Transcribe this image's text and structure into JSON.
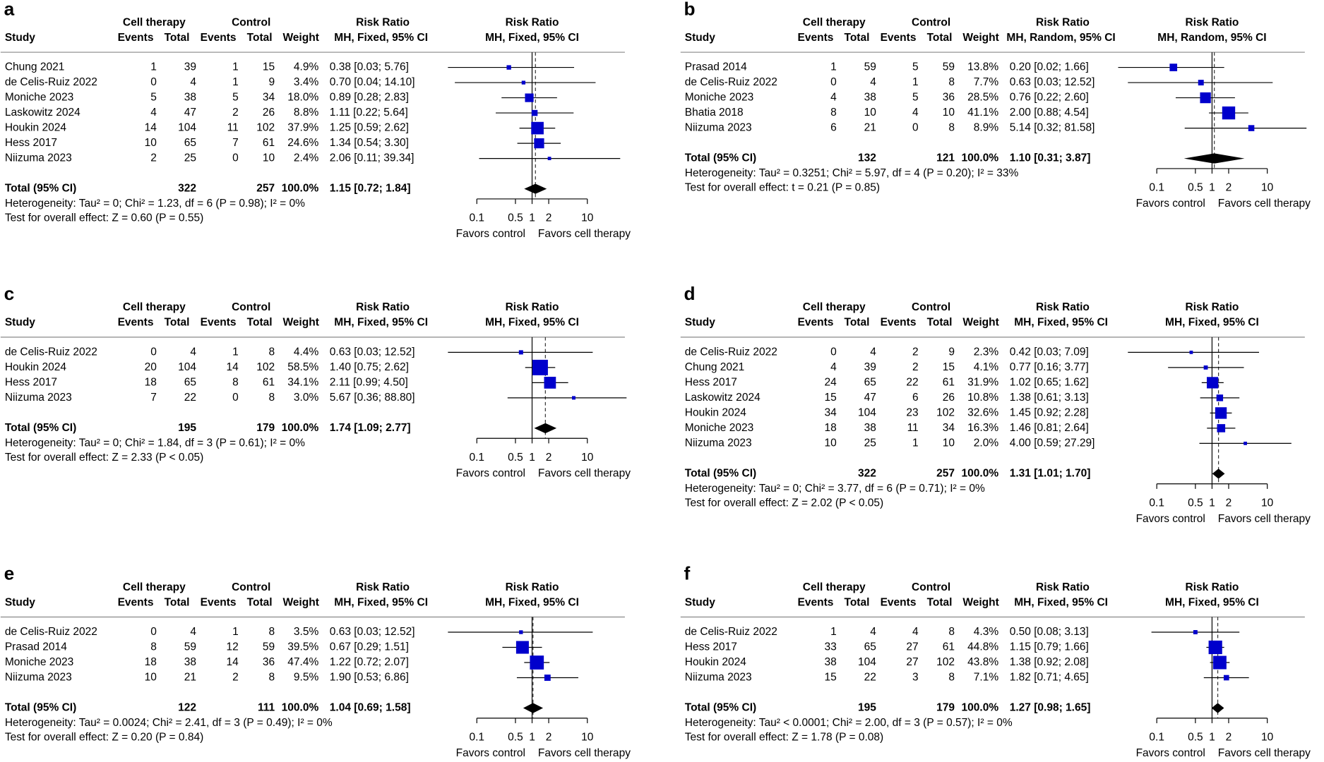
{
  "chart_data": [
    {
      "type": "forest",
      "label": "a",
      "color": "#0000cc",
      "log": true,
      "xlim": [
        0.1,
        10
      ],
      "xticks": [
        0.1,
        0.5,
        1,
        2,
        10
      ],
      "headers": {
        "exp_group": "Cell therapy",
        "ctrl_group": "Control",
        "study": "Study",
        "events": "Events",
        "total": "Total",
        "weight": "Weight",
        "ci_title": "Risk Ratio",
        "ci_method": "MH, Fixed, 95% CI",
        "plot_title": "Risk Ratio",
        "plot_method": "MH, Fixed, 95% CI"
      },
      "studies": [
        "Chung 2021",
        "de Celis-Ruiz 2022",
        "Moniche 2023",
        "Laskowitz 2024",
        "Houkin 2024",
        "Hess 2017",
        "Niizuma 2023"
      ],
      "exp_events": [
        1,
        0,
        5,
        4,
        14,
        10,
        2
      ],
      "exp_total": [
        39,
        4,
        38,
        47,
        104,
        65,
        25
      ],
      "ctrl_events": [
        1,
        1,
        5,
        2,
        11,
        7,
        0
      ],
      "ctrl_total": [
        15,
        9,
        34,
        26,
        102,
        61,
        10
      ],
      "weights": [
        4.9,
        3.4,
        18.0,
        8.8,
        37.9,
        24.6,
        2.4
      ],
      "weight_labels": [
        "4.9%",
        "3.4%",
        "18.0%",
        "8.8%",
        "37.9%",
        "24.6%",
        "2.4%"
      ],
      "values": [
        0.38,
        0.7,
        0.89,
        1.11,
        1.25,
        1.34,
        2.06
      ],
      "lower": [
        0.03,
        0.04,
        0.28,
        0.22,
        0.59,
        0.54,
        0.11
      ],
      "upper": [
        5.76,
        14.1,
        2.83,
        5.64,
        2.62,
        3.3,
        39.34
      ],
      "value_labels": [
        "0.38 [0.03; 5.76]",
        "0.70 [0.04; 14.10]",
        "0.89 [0.28; 2.83]",
        "1.11 [0.22; 5.64]",
        "1.25 [0.59; 2.62]",
        "1.34 [0.54; 3.30]",
        "2.06 [0.11; 39.34]"
      ],
      "total": {
        "label": "Total (95% CI)",
        "exp_total": 322,
        "ctrl_total": 257,
        "weight": 100,
        "weight_label": "100.0%",
        "value": 1.15,
        "lower": 0.72,
        "upper": 1.84,
        "value_label": "1.15 [0.72; 1.84]"
      },
      "heterogeneity": "Heterogeneity: Tau² = 0; Chi² = 1.23, df = 6 (P = 0.98); I² = 0%",
      "overall_effect": "Test for overall effect: Z = 0.60 (P = 0.55)",
      "favors_left": "Favors control",
      "favors_right": "Favors cell therapy"
    },
    {
      "type": "forest",
      "label": "b",
      "color": "#0000cc",
      "log": true,
      "xlim": [
        0.1,
        10
      ],
      "xticks": [
        0.1,
        0.5,
        1,
        2,
        10
      ],
      "headers": {
        "exp_group": "Cell therapy",
        "ctrl_group": "Control",
        "study": "Study",
        "events": "Events",
        "total": "Total",
        "weight": "Weight",
        "ci_title": "Risk Ratio",
        "ci_method": "MH, Random, 95% CI",
        "plot_title": "Risk Ratio",
        "plot_method": "MH, Random, 95% CI"
      },
      "studies": [
        "Prasad 2014",
        "de Celis-Ruiz 2022",
        "Moniche 2023",
        "Bhatia 2018",
        "Niizuma 2023"
      ],
      "exp_events": [
        1,
        0,
        4,
        8,
        6
      ],
      "exp_total": [
        59,
        4,
        38,
        10,
        21
      ],
      "ctrl_events": [
        5,
        1,
        5,
        4,
        0
      ],
      "ctrl_total": [
        59,
        8,
        36,
        10,
        8
      ],
      "weights": [
        13.8,
        7.7,
        28.5,
        41.1,
        8.9
      ],
      "weight_labels": [
        "13.8%",
        "7.7%",
        "28.5%",
        "41.1%",
        "8.9%"
      ],
      "values": [
        0.2,
        0.63,
        0.76,
        2.0,
        5.14
      ],
      "lower": [
        0.02,
        0.03,
        0.22,
        0.88,
        0.32
      ],
      "upper": [
        1.66,
        12.52,
        2.6,
        4.54,
        81.58
      ],
      "value_labels": [
        "0.20 [0.02; 1.66]",
        "0.63 [0.03; 12.52]",
        "0.76 [0.22; 2.60]",
        "2.00 [0.88; 4.54]",
        "5.14 [0.32; 81.58]"
      ],
      "total": {
        "label": "Total (95% CI)",
        "exp_total": 132,
        "ctrl_total": 121,
        "weight": 100,
        "weight_label": "100.0%",
        "value": 1.1,
        "lower": 0.31,
        "upper": 3.87,
        "value_label": "1.10 [0.31; 3.87]"
      },
      "heterogeneity": "Heterogeneity: Tau² = 0.3251; Chi² = 5.97, df = 4 (P = 0.20); I² = 33%",
      "overall_effect": "Test for overall effect: t = 0.21 (P = 0.85)",
      "favors_left": "Favors control",
      "favors_right": "Favors cell therapy"
    },
    {
      "type": "forest",
      "label": "c",
      "color": "#0000cc",
      "log": true,
      "xlim": [
        0.1,
        10
      ],
      "xticks": [
        0.1,
        0.5,
        1,
        2,
        10
      ],
      "headers": {
        "exp_group": "Cell therapy",
        "ctrl_group": "Control",
        "study": "Study",
        "events": "Events",
        "total": "Total",
        "weight": "Weight",
        "ci_title": "Risk Ratio",
        "ci_method": "MH, Fixed, 95% CI",
        "plot_title": "Risk Ratio",
        "plot_method": "MH, Fixed, 95% CI"
      },
      "studies": [
        "de Celis-Ruiz 2022",
        "Houkin 2024",
        "Hess 2017",
        "Niizuma 2023"
      ],
      "exp_events": [
        0,
        20,
        18,
        7
      ],
      "exp_total": [
        4,
        104,
        65,
        22
      ],
      "ctrl_events": [
        1,
        14,
        8,
        0
      ],
      "ctrl_total": [
        8,
        102,
        61,
        8
      ],
      "weights": [
        4.4,
        58.5,
        34.1,
        3.0
      ],
      "weight_labels": [
        "4.4%",
        "58.5%",
        "34.1%",
        "3.0%"
      ],
      "values": [
        0.63,
        1.4,
        2.11,
        5.67
      ],
      "lower": [
        0.03,
        0.75,
        0.99,
        0.36
      ],
      "upper": [
        12.52,
        2.62,
        4.5,
        88.8
      ],
      "value_labels": [
        "0.63 [0.03; 12.52]",
        "1.40 [0.75; 2.62]",
        "2.11 [0.99; 4.50]",
        "5.67 [0.36; 88.80]"
      ],
      "total": {
        "label": "Total (95% CI)",
        "exp_total": 195,
        "ctrl_total": 179,
        "weight": 100,
        "weight_label": "100.0%",
        "value": 1.74,
        "lower": 1.09,
        "upper": 2.77,
        "value_label": "1.74 [1.09; 2.77]"
      },
      "heterogeneity": "Heterogeneity: Tau² = 0; Chi² = 1.84, df = 3 (P = 0.61); I² = 0%",
      "overall_effect": "Test for overall effect: Z = 2.33 (P < 0.05)",
      "favors_left": "Favors control",
      "favors_right": "Favors cell therapy"
    },
    {
      "type": "forest",
      "label": "d",
      "color": "#0000cc",
      "log": true,
      "xlim": [
        0.1,
        10
      ],
      "xticks": [
        0.1,
        0.5,
        1,
        2,
        10
      ],
      "headers": {
        "exp_group": "Cell therapy",
        "ctrl_group": "Control",
        "study": "Study",
        "events": "Events",
        "total": "Total",
        "weight": "Weight",
        "ci_title": "Risk Ratio",
        "ci_method": "MH, Fixed, 95% CI",
        "plot_title": "Risk Ratio",
        "plot_method": "MH, Fixed, 95% CI"
      },
      "studies": [
        "de Celis-Ruiz 2022",
        "Chung 2021",
        "Hess 2017",
        "Laskowitz 2024",
        "Houkin 2024",
        "Moniche 2023",
        "Niizuma 2023"
      ],
      "exp_events": [
        0,
        4,
        24,
        15,
        34,
        18,
        10
      ],
      "exp_total": [
        4,
        39,
        65,
        47,
        104,
        38,
        25
      ],
      "ctrl_events": [
        2,
        2,
        22,
        6,
        23,
        11,
        1
      ],
      "ctrl_total": [
        9,
        15,
        61,
        26,
        102,
        34,
        10
      ],
      "weights": [
        2.3,
        4.1,
        31.9,
        10.8,
        32.6,
        16.3,
        2.0
      ],
      "weight_labels": [
        "2.3%",
        "4.1%",
        "31.9%",
        "10.8%",
        "32.6%",
        "16.3%",
        "2.0%"
      ],
      "values": [
        0.42,
        0.77,
        1.02,
        1.38,
        1.45,
        1.46,
        4.0
      ],
      "lower": [
        0.03,
        0.16,
        0.65,
        0.61,
        0.92,
        0.81,
        0.59
      ],
      "upper": [
        7.09,
        3.77,
        1.62,
        3.13,
        2.28,
        2.64,
        27.29
      ],
      "value_labels": [
        "0.42 [0.03; 7.09]",
        "0.77 [0.16; 3.77]",
        "1.02 [0.65; 1.62]",
        "1.38 [0.61; 3.13]",
        "1.45 [0.92; 2.28]",
        "1.46 [0.81; 2.64]",
        "4.00 [0.59; 27.29]"
      ],
      "total": {
        "label": "Total (95% CI)",
        "exp_total": 322,
        "ctrl_total": 257,
        "weight": 100,
        "weight_label": "100.0%",
        "value": 1.31,
        "lower": 1.01,
        "upper": 1.7,
        "value_label": "1.31 [1.01; 1.70]"
      },
      "heterogeneity": "Heterogeneity: Tau² = 0; Chi² = 3.77, df = 6 (P = 0.71); I² = 0%",
      "overall_effect": "Test for overall effect: Z = 2.02 (P < 0.05)",
      "favors_left": "Favors control",
      "favors_right": "Favors cell therapy"
    },
    {
      "type": "forest",
      "label": "e",
      "color": "#0000cc",
      "log": true,
      "xlim": [
        0.1,
        10
      ],
      "xticks": [
        0.1,
        0.5,
        1,
        2,
        10
      ],
      "headers": {
        "exp_group": "Cell therapy",
        "ctrl_group": "Control",
        "study": "Study",
        "events": "Events",
        "total": "Total",
        "weight": "Weight",
        "ci_title": "Risk Ratio",
        "ci_method": "MH, Fixed, 95% CI",
        "plot_title": "Risk Ratio",
        "plot_method": "MH, Fixed, 95% CI"
      },
      "studies": [
        "de Celis-Ruiz 2022",
        "Prasad 2014",
        "Moniche 2023",
        "Niizuma 2023"
      ],
      "exp_events": [
        0,
        8,
        18,
        10
      ],
      "exp_total": [
        4,
        59,
        38,
        21
      ],
      "ctrl_events": [
        1,
        12,
        14,
        2
      ],
      "ctrl_total": [
        8,
        59,
        36,
        8
      ],
      "weights": [
        3.5,
        39.5,
        47.4,
        9.5
      ],
      "weight_labels": [
        "3.5%",
        "39.5%",
        "47.4%",
        "9.5%"
      ],
      "values": [
        0.63,
        0.67,
        1.22,
        1.9
      ],
      "lower": [
        0.03,
        0.29,
        0.72,
        0.53
      ],
      "upper": [
        12.52,
        1.51,
        2.07,
        6.86
      ],
      "value_labels": [
        "0.63 [0.03; 12.52]",
        "0.67 [0.29; 1.51]",
        "1.22 [0.72; 2.07]",
        "1.90 [0.53; 6.86]"
      ],
      "total": {
        "label": "Total (95% CI)",
        "exp_total": 122,
        "ctrl_total": 111,
        "weight": 100,
        "weight_label": "100.0%",
        "value": 1.04,
        "lower": 0.69,
        "upper": 1.58,
        "value_label": "1.04 [0.69; 1.58]"
      },
      "heterogeneity": "Heterogeneity: Tau² = 0.0024; Chi² = 2.41, df = 3 (P = 0.49); I² = 0%",
      "overall_effect": "Test for overall effect: Z = 0.20 (P = 0.84)",
      "favors_left": "Favors control",
      "favors_right": "Favors cell therapy"
    },
    {
      "type": "forest",
      "label": "f",
      "color": "#0000cc",
      "log": true,
      "xlim": [
        0.1,
        10
      ],
      "xticks": [
        0.1,
        0.5,
        1,
        2,
        10
      ],
      "headers": {
        "exp_group": "Cell therapy",
        "ctrl_group": "Control",
        "study": "Study",
        "events": "Events",
        "total": "Total",
        "weight": "Weight",
        "ci_title": "Risk Ratio",
        "ci_method": "MH, Fixed, 95% CI",
        "plot_title": "Risk Ratio",
        "plot_method": "MH, Fixed, 95% CI"
      },
      "studies": [
        "de Celis-Ruiz 2022",
        "Hess 2017",
        "Houkin 2024",
        "Niizuma 2023"
      ],
      "exp_events": [
        1,
        33,
        38,
        15
      ],
      "exp_total": [
        4,
        65,
        104,
        22
      ],
      "ctrl_events": [
        4,
        27,
        27,
        3
      ],
      "ctrl_total": [
        8,
        61,
        102,
        8
      ],
      "weights": [
        4.3,
        44.8,
        43.8,
        7.1
      ],
      "weight_labels": [
        "4.3%",
        "44.8%",
        "43.8%",
        "7.1%"
      ],
      "values": [
        0.5,
        1.15,
        1.38,
        1.82
      ],
      "lower": [
        0.08,
        0.79,
        0.92,
        0.71
      ],
      "upper": [
        3.13,
        1.66,
        2.08,
        4.65
      ],
      "value_labels": [
        "0.50 [0.08; 3.13]",
        "1.15 [0.79; 1.66]",
        "1.38 [0.92; 2.08]",
        "1.82 [0.71; 4.65]"
      ],
      "total": {
        "label": "Total (95% CI)",
        "exp_total": 195,
        "ctrl_total": 179,
        "weight": 100,
        "weight_label": "100.0%",
        "value": 1.27,
        "lower": 0.98,
        "upper": 1.65,
        "value_label": "1.27 [0.98; 1.65]"
      },
      "heterogeneity": "Heterogeneity: Tau² < 0.0001; Chi² = 2.00, df = 3 (P = 0.57); I² = 0%",
      "overall_effect": "Test for overall effect: Z = 1.78 (P = 0.08)",
      "favors_left": "Favors control",
      "favors_right": "Favors cell therapy"
    }
  ]
}
